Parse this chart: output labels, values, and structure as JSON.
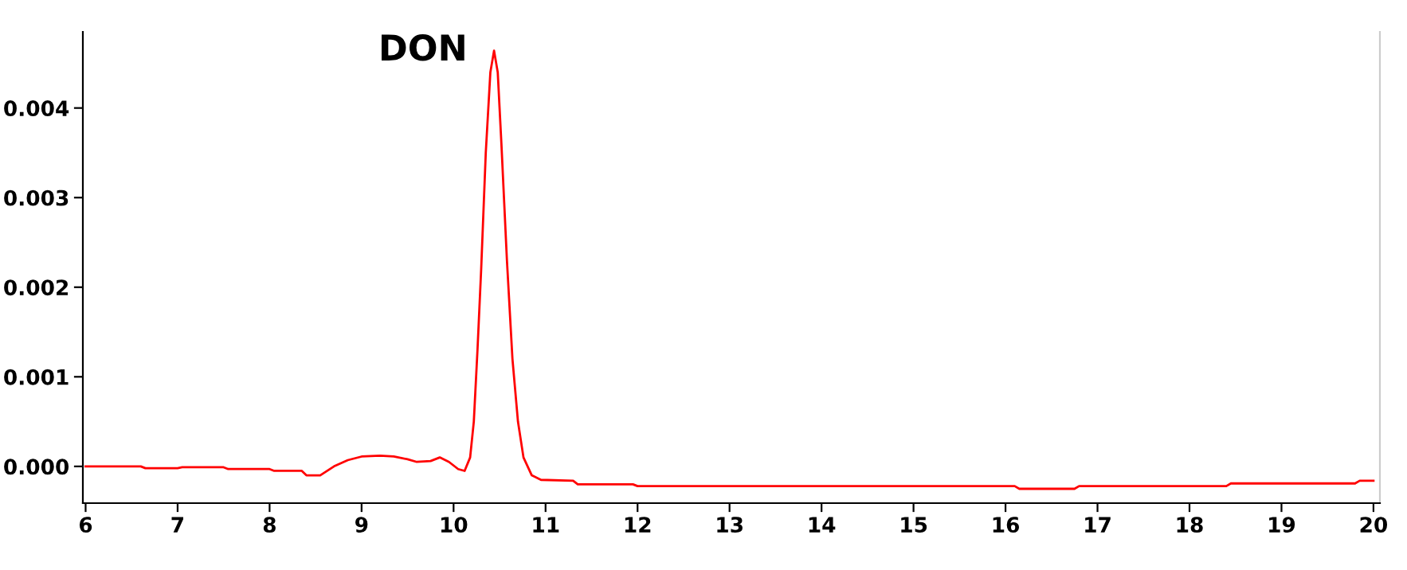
{
  "chart_data": {
    "type": "line",
    "x": [
      6.0,
      6.6,
      6.65,
      7.0,
      7.05,
      7.5,
      7.55,
      8.0,
      8.05,
      8.35,
      8.4,
      8.55,
      8.7,
      8.85,
      9.0,
      9.2,
      9.35,
      9.5,
      9.6,
      9.75,
      9.85,
      9.95,
      10.05,
      10.12,
      10.18,
      10.22,
      10.26,
      10.3,
      10.35,
      10.4,
      10.44,
      10.48,
      10.52,
      10.58,
      10.64,
      10.7,
      10.76,
      10.85,
      10.95,
      11.3,
      11.35,
      11.95,
      12.0,
      16.1,
      16.15,
      16.75,
      16.8,
      18.4,
      18.45,
      19.8,
      19.85,
      20.0
    ],
    "series": [
      {
        "color": "#ff0000",
        "values": [
          0.0,
          0.0,
          -2e-05,
          -2e-05,
          -1e-05,
          -1e-05,
          -3e-05,
          -3e-05,
          -5e-05,
          -5e-05,
          -0.0001,
          -0.0001,
          0.0,
          7e-05,
          0.00011,
          0.00012,
          0.00011,
          8e-05,
          5e-05,
          6e-05,
          0.0001,
          5e-05,
          -3e-05,
          -5e-05,
          0.0001,
          0.0005,
          0.0013,
          0.0022,
          0.0035,
          0.0044,
          0.00464,
          0.0044,
          0.0036,
          0.0023,
          0.0012,
          0.0005,
          0.0001,
          -0.0001,
          -0.00015,
          -0.00016,
          -0.0002,
          -0.0002,
          -0.00022,
          -0.00022,
          -0.00025,
          -0.00025,
          -0.00022,
          -0.00022,
          -0.00019,
          -0.00019,
          -0.00016,
          -0.00016
        ]
      }
    ],
    "xlim": [
      5.97,
      20.07
    ],
    "ylim": [
      -0.00041,
      0.00485
    ],
    "xticks": [
      6,
      7,
      8,
      9,
      10,
      11,
      12,
      13,
      14,
      15,
      16,
      17,
      18,
      19,
      20
    ],
    "yticks": [
      {
        "value": 0.0,
        "label": "0.000"
      },
      {
        "value": 0.001,
        "label": "0.001"
      },
      {
        "value": 0.002,
        "label": "0.002"
      },
      {
        "value": 0.003,
        "label": "0.003"
      },
      {
        "value": 0.004,
        "label": "0.004"
      }
    ],
    "annotations": [
      {
        "text": "DON",
        "x": 10.44,
        "y": 0.00464
      }
    ],
    "grid": false,
    "legend": false,
    "marker": "none",
    "line_style": "solid"
  }
}
